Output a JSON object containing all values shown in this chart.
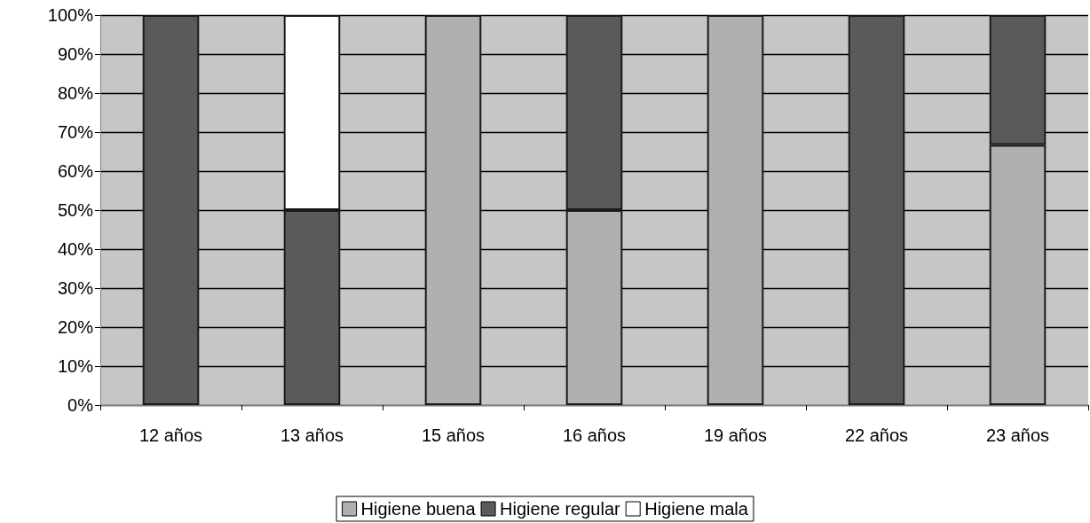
{
  "chart_data": {
    "type": "bar",
    "stacked": true,
    "categories": [
      "12 años",
      "13 años",
      "15 años",
      "16 años",
      "19 años",
      "22 años",
      "23 años"
    ],
    "series": [
      {
        "name": "Higiene buena",
        "color": "#b0b0b0",
        "values": [
          0,
          0,
          100,
          50,
          100,
          0,
          66.7
        ]
      },
      {
        "name": "Higiene regular",
        "color": "#5a5a5a",
        "values": [
          100,
          50,
          0,
          50,
          0,
          100,
          33.3
        ]
      },
      {
        "name": "Higiene mala",
        "color": "#ffffff",
        "values": [
          0,
          50,
          0,
          0,
          0,
          0,
          0
        ]
      }
    ],
    "ylim": [
      0,
      100
    ],
    "yticks": [
      {
        "value": 0,
        "label": "0%"
      },
      {
        "value": 10,
        "label": "10%"
      },
      {
        "value": 20,
        "label": "20%"
      },
      {
        "value": 30,
        "label": "30%"
      },
      {
        "value": 40,
        "label": "40%"
      },
      {
        "value": 50,
        "label": "50%"
      },
      {
        "value": 60,
        "label": "60%"
      },
      {
        "value": 70,
        "label": "70%"
      },
      {
        "value": 80,
        "label": "80%"
      },
      {
        "value": 90,
        "label": "90%"
      },
      {
        "value": 100,
        "label": "100%"
      }
    ],
    "grid": "y",
    "legend": "bottom"
  }
}
